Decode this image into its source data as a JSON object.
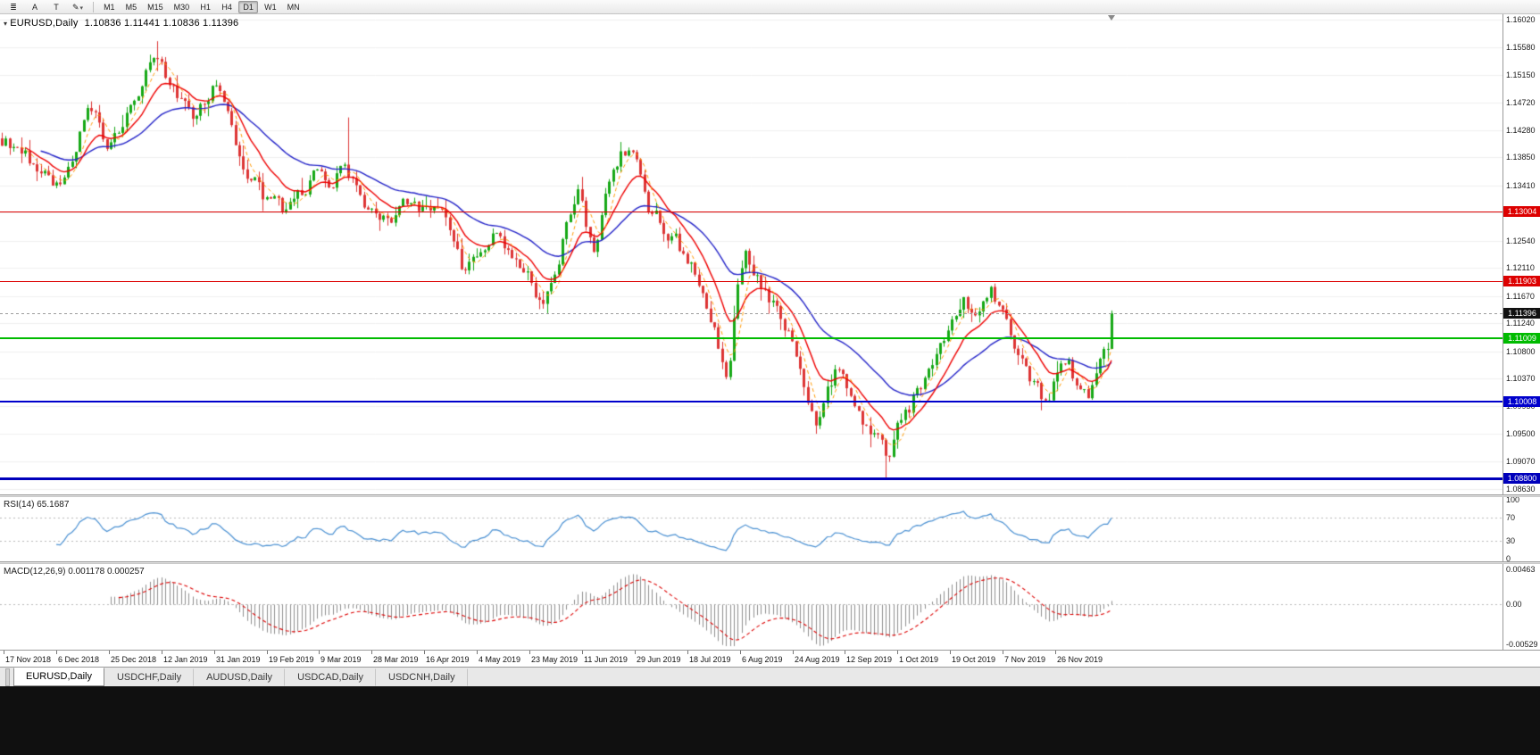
{
  "toolbar": {
    "tools": [
      {
        "id": "indicators-list",
        "glyph": "≣"
      },
      {
        "id": "text-annotation",
        "glyph": "A"
      },
      {
        "id": "text-box",
        "glyph": "T"
      },
      {
        "id": "drawing-tools",
        "glyph": "✎",
        "caret": "▾"
      }
    ],
    "timeframes": [
      "M1",
      "M5",
      "M15",
      "M30",
      "H1",
      "H4",
      "D1",
      "W1",
      "MN"
    ],
    "active_timeframe": "D1"
  },
  "chart": {
    "symbol_label": "EURUSD,Daily",
    "ohlc_label": "1.10836 1.11441 1.10836 1.11396",
    "collapse_arrow": "▾",
    "candles_count": 286,
    "colors": {
      "up": "#16a816",
      "down": "#dd3434",
      "ma_fast": "#ee0000",
      "ma_slow": "#2424c8",
      "ma_short": "#ff9900",
      "grid": "#efefef"
    },
    "y_axis": {
      "top_value": 1.1602,
      "bottom_value": 1.0863,
      "ticks": [
        "1.16020",
        "1.15580",
        "1.15150",
        "1.14720",
        "1.14280",
        "1.13850",
        "1.13410",
        "1.12980",
        "1.12540",
        "1.12110",
        "1.11670",
        "1.11240",
        "1.10800",
        "1.10370",
        "1.09930",
        "1.09500",
        "1.09070",
        "1.08630"
      ]
    },
    "levels": [
      {
        "price": "1.13004",
        "value": 1.13004,
        "color": "#dd0000",
        "thickness": 1
      },
      {
        "price": "1.11903",
        "value": 1.11903,
        "color": "#dd0000",
        "thickness": 1
      },
      {
        "price": "1.11009",
        "value": 1.11009,
        "color": "#00bb00",
        "thickness": 2
      },
      {
        "price": "1.10008",
        "value": 1.10008,
        "color": "#0000cc",
        "thickness": 2
      },
      {
        "price": "1.08800",
        "value": 1.088,
        "color": "#0000bb",
        "thickness": 3
      }
    ],
    "current_price": {
      "price": "1.11396",
      "value": 1.11396,
      "tag_bg": "#111111"
    },
    "last_candle": {
      "o": 1.10836,
      "h": 1.11441,
      "l": 1.10836,
      "c": 1.11396
    },
    "wick_spikes": [
      {
        "t": 0.141,
        "high": 1.1568
      },
      {
        "t": 0.312,
        "high": 1.1448
      },
      {
        "t": 0.798,
        "low": 1.0879
      }
    ],
    "price_path": [
      [
        0.0,
        1.1415
      ],
      [
        0.024,
        1.138
      ],
      [
        0.048,
        1.133
      ],
      [
        0.06,
        1.1365
      ],
      [
        0.08,
        1.1465
      ],
      [
        0.096,
        1.1405
      ],
      [
        0.112,
        1.145
      ],
      [
        0.132,
        1.152
      ],
      [
        0.141,
        1.1545
      ],
      [
        0.157,
        1.149
      ],
      [
        0.173,
        1.144
      ],
      [
        0.19,
        1.1505
      ],
      [
        0.205,
        1.145
      ],
      [
        0.217,
        1.1377
      ],
      [
        0.229,
        1.1343
      ],
      [
        0.241,
        1.1309
      ],
      [
        0.257,
        1.1302
      ],
      [
        0.273,
        1.1329
      ],
      [
        0.285,
        1.137
      ],
      [
        0.297,
        1.1336
      ],
      [
        0.309,
        1.1377
      ],
      [
        0.321,
        1.1316
      ],
      [
        0.337,
        1.1282
      ],
      [
        0.353,
        1.1289
      ],
      [
        0.369,
        1.1323
      ],
      [
        0.382,
        1.1296
      ],
      [
        0.394,
        1.1316
      ],
      [
        0.406,
        1.1276
      ],
      [
        0.418,
        1.12
      ],
      [
        0.43,
        1.1225
      ],
      [
        0.442,
        1.126
      ],
      [
        0.454,
        1.1238
      ],
      [
        0.466,
        1.1215
      ],
      [
        0.478,
        1.119
      ],
      [
        0.488,
        1.114
      ],
      [
        0.498,
        1.1195
      ],
      [
        0.51,
        1.129
      ],
      [
        0.522,
        1.133
      ],
      [
        0.532,
        1.124
      ],
      [
        0.546,
        1.133
      ],
      [
        0.558,
        1.1395
      ],
      [
        0.568,
        1.14
      ],
      [
        0.582,
        1.1305
      ],
      [
        0.594,
        1.1282
      ],
      [
        0.606,
        1.1262
      ],
      [
        0.618,
        1.1221
      ],
      [
        0.63,
        1.118
      ],
      [
        0.643,
        1.11
      ],
      [
        0.655,
        1.104
      ],
      [
        0.663,
        1.118
      ],
      [
        0.671,
        1.123
      ],
      [
        0.683,
        1.119
      ],
      [
        0.695,
        1.115
      ],
      [
        0.707,
        1.112
      ],
      [
        0.719,
        1.106
      ],
      [
        0.727,
        1.0995
      ],
      [
        0.735,
        1.0965
      ],
      [
        0.743,
        1.101
      ],
      [
        0.751,
        1.105
      ],
      [
        0.763,
        1.101
      ],
      [
        0.775,
        1.0975
      ],
      [
        0.787,
        1.095
      ],
      [
        0.798,
        1.0915
      ],
      [
        0.807,
        1.0975
      ],
      [
        0.819,
        1.1
      ],
      [
        0.831,
        1.104
      ],
      [
        0.843,
        1.1085
      ],
      [
        0.855,
        1.1125
      ],
      [
        0.867,
        1.1165
      ],
      [
        0.88,
        1.1135
      ],
      [
        0.892,
        1.1175
      ],
      [
        0.904,
        1.112
      ],
      [
        0.916,
        1.108
      ],
      [
        0.928,
        1.104
      ],
      [
        0.94,
        1.1005
      ],
      [
        0.95,
        1.1035
      ],
      [
        0.96,
        1.106
      ],
      [
        0.97,
        1.1015
      ],
      [
        0.978,
        1.1
      ],
      [
        0.986,
        1.104
      ],
      [
        0.994,
        1.1075
      ],
      [
        1.0,
        1.1085
      ]
    ]
  },
  "rsi": {
    "label": "RSI(14) 65.1687",
    "period": 14,
    "color": "#4a90d2",
    "levels": [
      70,
      30
    ],
    "ticks": [
      {
        "v": 100,
        "t": "100"
      },
      {
        "v": 70,
        "t": "70"
      },
      {
        "v": 30,
        "t": "30"
      },
      {
        "v": 0,
        "t": "0"
      }
    ]
  },
  "macd": {
    "label": "MACD(12,26,9) 0.001178 0.000257",
    "periods": [
      12,
      26,
      9
    ],
    "max": 0.00463,
    "min": -0.00529,
    "histogram_color": "#8f8f8f",
    "signal_color": "#dd0000",
    "ticks": [
      {
        "v": 0.00463,
        "t": "0.00463"
      },
      {
        "v": 0,
        "t": "0.00"
      },
      {
        "v": -0.00529,
        "t": "-0.00529"
      }
    ]
  },
  "x_axis": {
    "labels": [
      "17 Nov 2018",
      "6 Dec 2018",
      "25 Dec 2018",
      "12 Jan 2019",
      "31 Jan 2019",
      "19 Feb 2019",
      "9 Mar 2019",
      "28 Mar 2019",
      "16 Apr 2019",
      "4 May 2019",
      "23 May 2019",
      "11 Jun 2019",
      "29 Jun 2019",
      "18 Jul 2019",
      "6 Aug 2019",
      "24 Aug 2019",
      "12 Sep 2019",
      "1 Oct 2019",
      "19 Oct 2019",
      "7 Nov 2019",
      "26 Nov 2019"
    ]
  },
  "tabs": [
    {
      "label": "EURUSD,Daily",
      "active": true
    },
    {
      "label": "USDCHF,Daily",
      "active": false
    },
    {
      "label": "AUDUSD,Daily",
      "active": false
    },
    {
      "label": "USDCAD,Daily",
      "active": false
    },
    {
      "label": "USDCNH,Daily",
      "active": false
    }
  ]
}
